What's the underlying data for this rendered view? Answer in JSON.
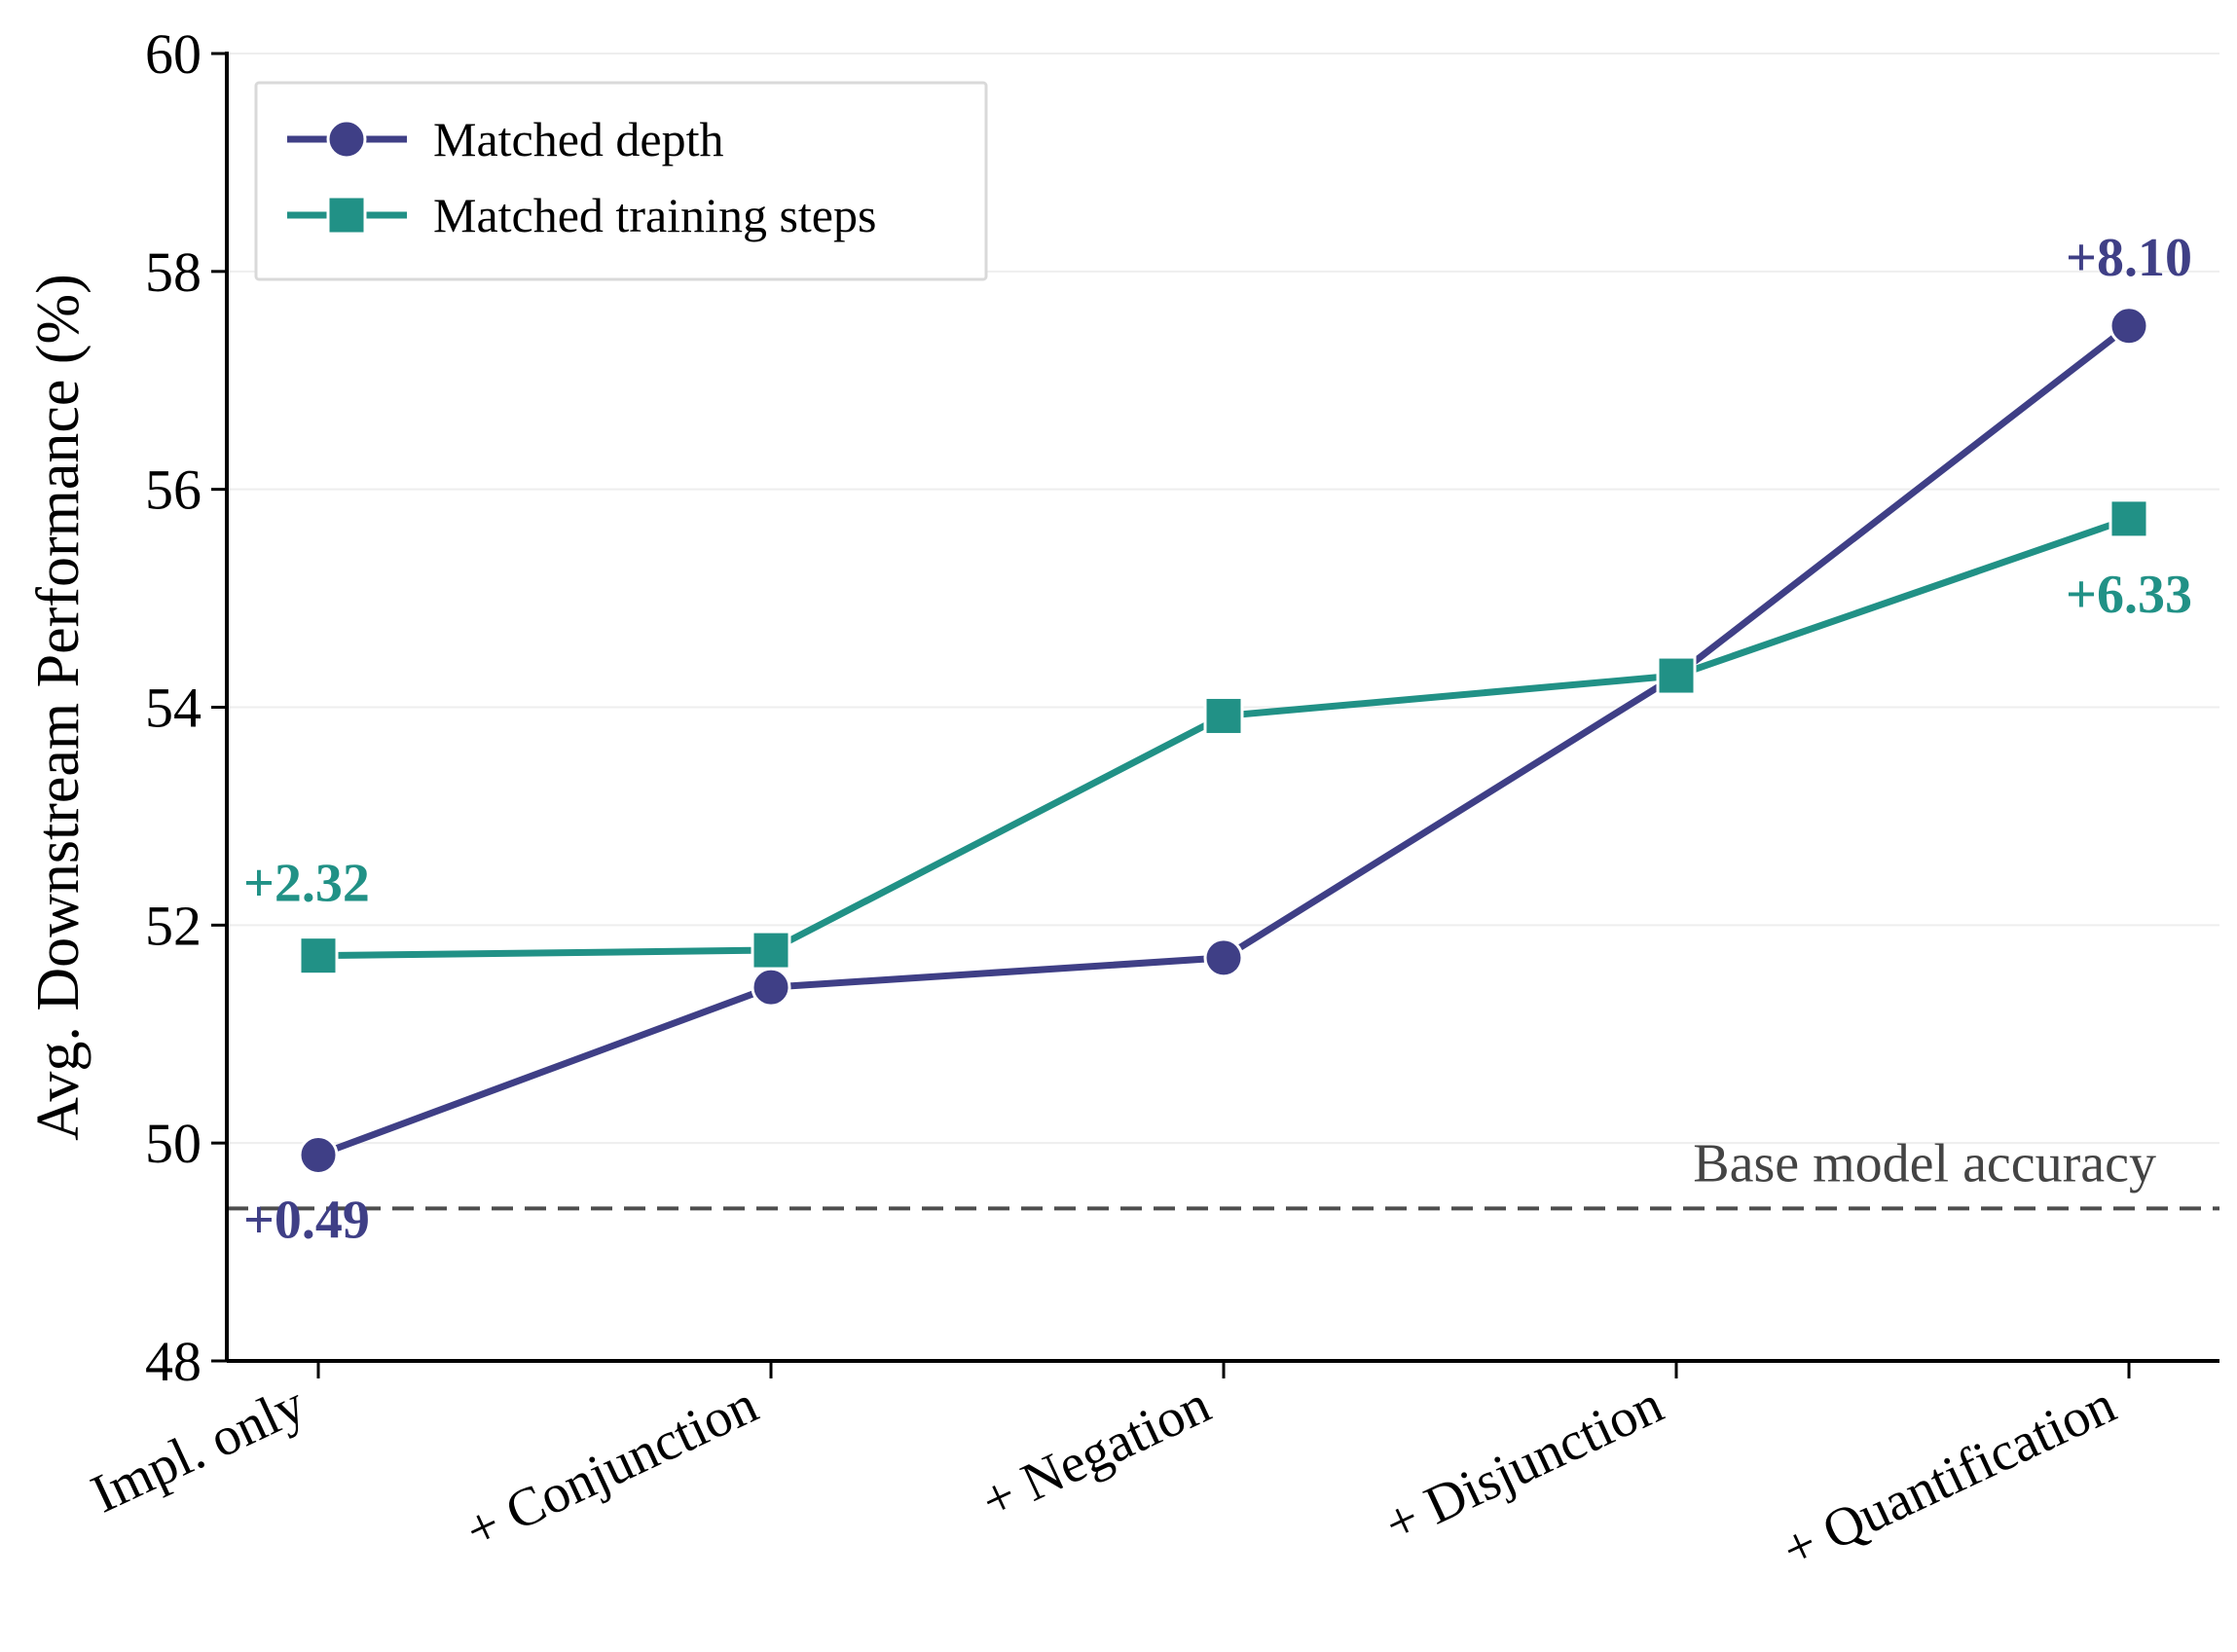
{
  "chart_data": {
    "type": "line",
    "title": "",
    "xlabel": "",
    "ylabel": "Avg. Downstream Performance (%)",
    "categories": [
      "Impl. only",
      "+ Conjunction",
      "+ Negation",
      "+ Disjunction",
      "+ Quantification"
    ],
    "ylim": [
      48,
      60
    ],
    "yticks": [
      "48",
      "50",
      "52",
      "54",
      "56",
      "58",
      "60"
    ],
    "grid": "horizontal, light",
    "legend_position": "top-left",
    "series": [
      {
        "name": "Matched depth",
        "marker": "circle",
        "color": "#3f3f86",
        "values": [
          49.89,
          51.43,
          51.7,
          54.29,
          57.5
        ]
      },
      {
        "name": "Matched training steps",
        "marker": "square",
        "color": "#219186",
        "values": [
          51.72,
          51.77,
          53.92,
          54.29,
          55.73
        ]
      }
    ],
    "baseline": {
      "label": "Base model accuracy",
      "value": 49.4,
      "color": "#4d4d4d",
      "style": "dashed"
    },
    "annotations": [
      {
        "text": "+0.49",
        "series": "Matched depth",
        "category": "Impl. only",
        "color": "#3f3f86"
      },
      {
        "text": "+2.32",
        "series": "Matched training steps",
        "category": "Impl. only",
        "color": "#219186"
      },
      {
        "text": "+8.10",
        "series": "Matched depth",
        "category": "+ Quantification",
        "color": "#3f3f86"
      },
      {
        "text": "+6.33",
        "series": "Matched training steps",
        "category": "+ Quantification",
        "color": "#219186"
      }
    ]
  }
}
